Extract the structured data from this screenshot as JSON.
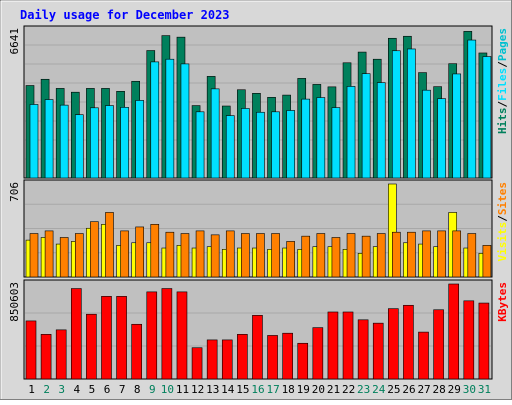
{
  "title": "Daily usage for December 2023",
  "colors": {
    "hits": "#00805c",
    "files": "#00e0ff",
    "pages": "#00c0d0",
    "visits": "#ffff00",
    "sites": "#ff8000",
    "kbytes": "#ff0000",
    "weekend_label": "#00805c",
    "weekday_label": "#000000",
    "title": "#0000ff",
    "plot_bg": "#c0c0c0",
    "frame_bg": "#d8d8d8"
  },
  "chart_data": [
    {
      "type": "bar",
      "name": "hits-files",
      "ymax_label": "6641",
      "ymax": 6641,
      "right_labels": [
        "Pages",
        "Files",
        "Hits"
      ],
      "categories": [
        "1",
        "2",
        "3",
        "4",
        "5",
        "6",
        "7",
        "8",
        "9",
        "10",
        "11",
        "12",
        "13",
        "14",
        "15",
        "16",
        "17",
        "18",
        "19",
        "20",
        "21",
        "22",
        "23",
        "24",
        "25",
        "26",
        "27",
        "28",
        "29",
        "30",
        "31"
      ],
      "weekend_days": [
        "2",
        "3",
        "9",
        "10",
        "16",
        "17",
        "23",
        "24",
        "30",
        "31"
      ],
      "series": [
        {
          "name": "Hits",
          "values": [
            4150,
            4430,
            4020,
            3850,
            4020,
            4020,
            3890,
            4340,
            5720,
            6390,
            6320,
            3250,
            4560,
            3230,
            3960,
            3800,
            3620,
            3720,
            4470,
            4200,
            4090,
            5170,
            5650,
            5330,
            6270,
            6360,
            4730,
            4100,
            5130,
            6580,
            5610
          ]
        },
        {
          "name": "Files",
          "values": [
            3300,
            3520,
            3270,
            2840,
            3150,
            3250,
            3170,
            3480,
            5210,
            5330,
            5120,
            2970,
            4000,
            2800,
            3120,
            2950,
            2970,
            3030,
            3540,
            3610,
            3160,
            4110,
            4680,
            4280,
            5710,
            5790,
            3940,
            3560,
            4670,
            6190,
            5450
          ]
        },
        {
          "name": "Pages",
          "values": [
            3300,
            3520,
            3270,
            2840,
            3150,
            3250,
            3170,
            3480,
            5210,
            5330,
            5120,
            2970,
            4000,
            2800,
            3120,
            2950,
            2970,
            3030,
            3540,
            3610,
            3160,
            4110,
            4680,
            4280,
            5710,
            5790,
            3940,
            3560,
            4670,
            6190,
            5450
          ]
        }
      ]
    },
    {
      "type": "bar",
      "name": "visits-sites",
      "ymax_label": "706",
      "ymax": 706,
      "right_labels": [
        "Sites",
        "Visits"
      ],
      "categories": [
        "1",
        "2",
        "3",
        "4",
        "5",
        "6",
        "7",
        "8",
        "9",
        "10",
        "11",
        "12",
        "13",
        "14",
        "15",
        "16",
        "17",
        "18",
        "19",
        "20",
        "21",
        "22",
        "23",
        "24",
        "25",
        "26",
        "27",
        "28",
        "29",
        "30",
        "31"
      ],
      "series": [
        {
          "name": "Visits",
          "values": [
            280,
            300,
            250,
            270,
            370,
            400,
            240,
            260,
            260,
            220,
            240,
            220,
            230,
            210,
            220,
            220,
            210,
            220,
            210,
            230,
            230,
            210,
            180,
            230,
            706,
            260,
            250,
            230,
            490,
            220,
            180
          ]
        },
        {
          "name": "Sites",
          "values": [
            330,
            350,
            300,
            330,
            420,
            490,
            350,
            380,
            400,
            340,
            330,
            350,
            320,
            350,
            330,
            330,
            330,
            270,
            310,
            330,
            300,
            330,
            310,
            330,
            340,
            340,
            350,
            350,
            350,
            330,
            240
          ]
        }
      ]
    },
    {
      "type": "bar",
      "name": "kbytes",
      "ymax_label": "850603",
      "ymax": 850603,
      "right_labels": [
        "KBytes"
      ],
      "categories": [
        "1",
        "2",
        "3",
        "4",
        "5",
        "6",
        "7",
        "8",
        "9",
        "10",
        "11",
        "12",
        "13",
        "14",
        "15",
        "16",
        "17",
        "18",
        "19",
        "20",
        "21",
        "22",
        "23",
        "24",
        "25",
        "26",
        "27",
        "28",
        "29",
        "30",
        "31"
      ],
      "series": [
        {
          "name": "KBytes",
          "values": [
            520000,
            400000,
            440000,
            810000,
            580000,
            740000,
            740000,
            490000,
            780000,
            810000,
            780000,
            280000,
            350000,
            350000,
            400000,
            570000,
            390000,
            410000,
            320000,
            460000,
            600000,
            600000,
            530000,
            500000,
            630000,
            660000,
            420000,
            620000,
            850603,
            700000,
            680000
          ]
        }
      ]
    }
  ]
}
